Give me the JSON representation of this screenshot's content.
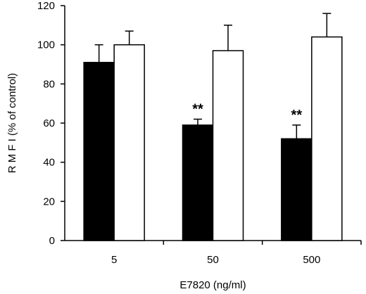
{
  "chart_data": {
    "type": "bar",
    "title": "",
    "xlabel": "E7820 (ng/ml)",
    "ylabel": "R M F I (% of control)",
    "categories": [
      "5",
      "50",
      "500"
    ],
    "ylim": [
      0,
      120
    ],
    "yticks": [
      "0",
      "20",
      "40",
      "60",
      "80",
      "100",
      "120"
    ],
    "grid": false,
    "legend": "none",
    "series": [
      {
        "fill": "#000000",
        "values": [
          91,
          59,
          52
        ],
        "errors": [
          9,
          3,
          7
        ],
        "annotations": [
          "",
          "**",
          "**"
        ]
      },
      {
        "fill": "#ffffff",
        "values": [
          100,
          97,
          104
        ],
        "errors": [
          7,
          13,
          12
        ],
        "annotations": [
          "",
          "",
          ""
        ]
      }
    ]
  }
}
